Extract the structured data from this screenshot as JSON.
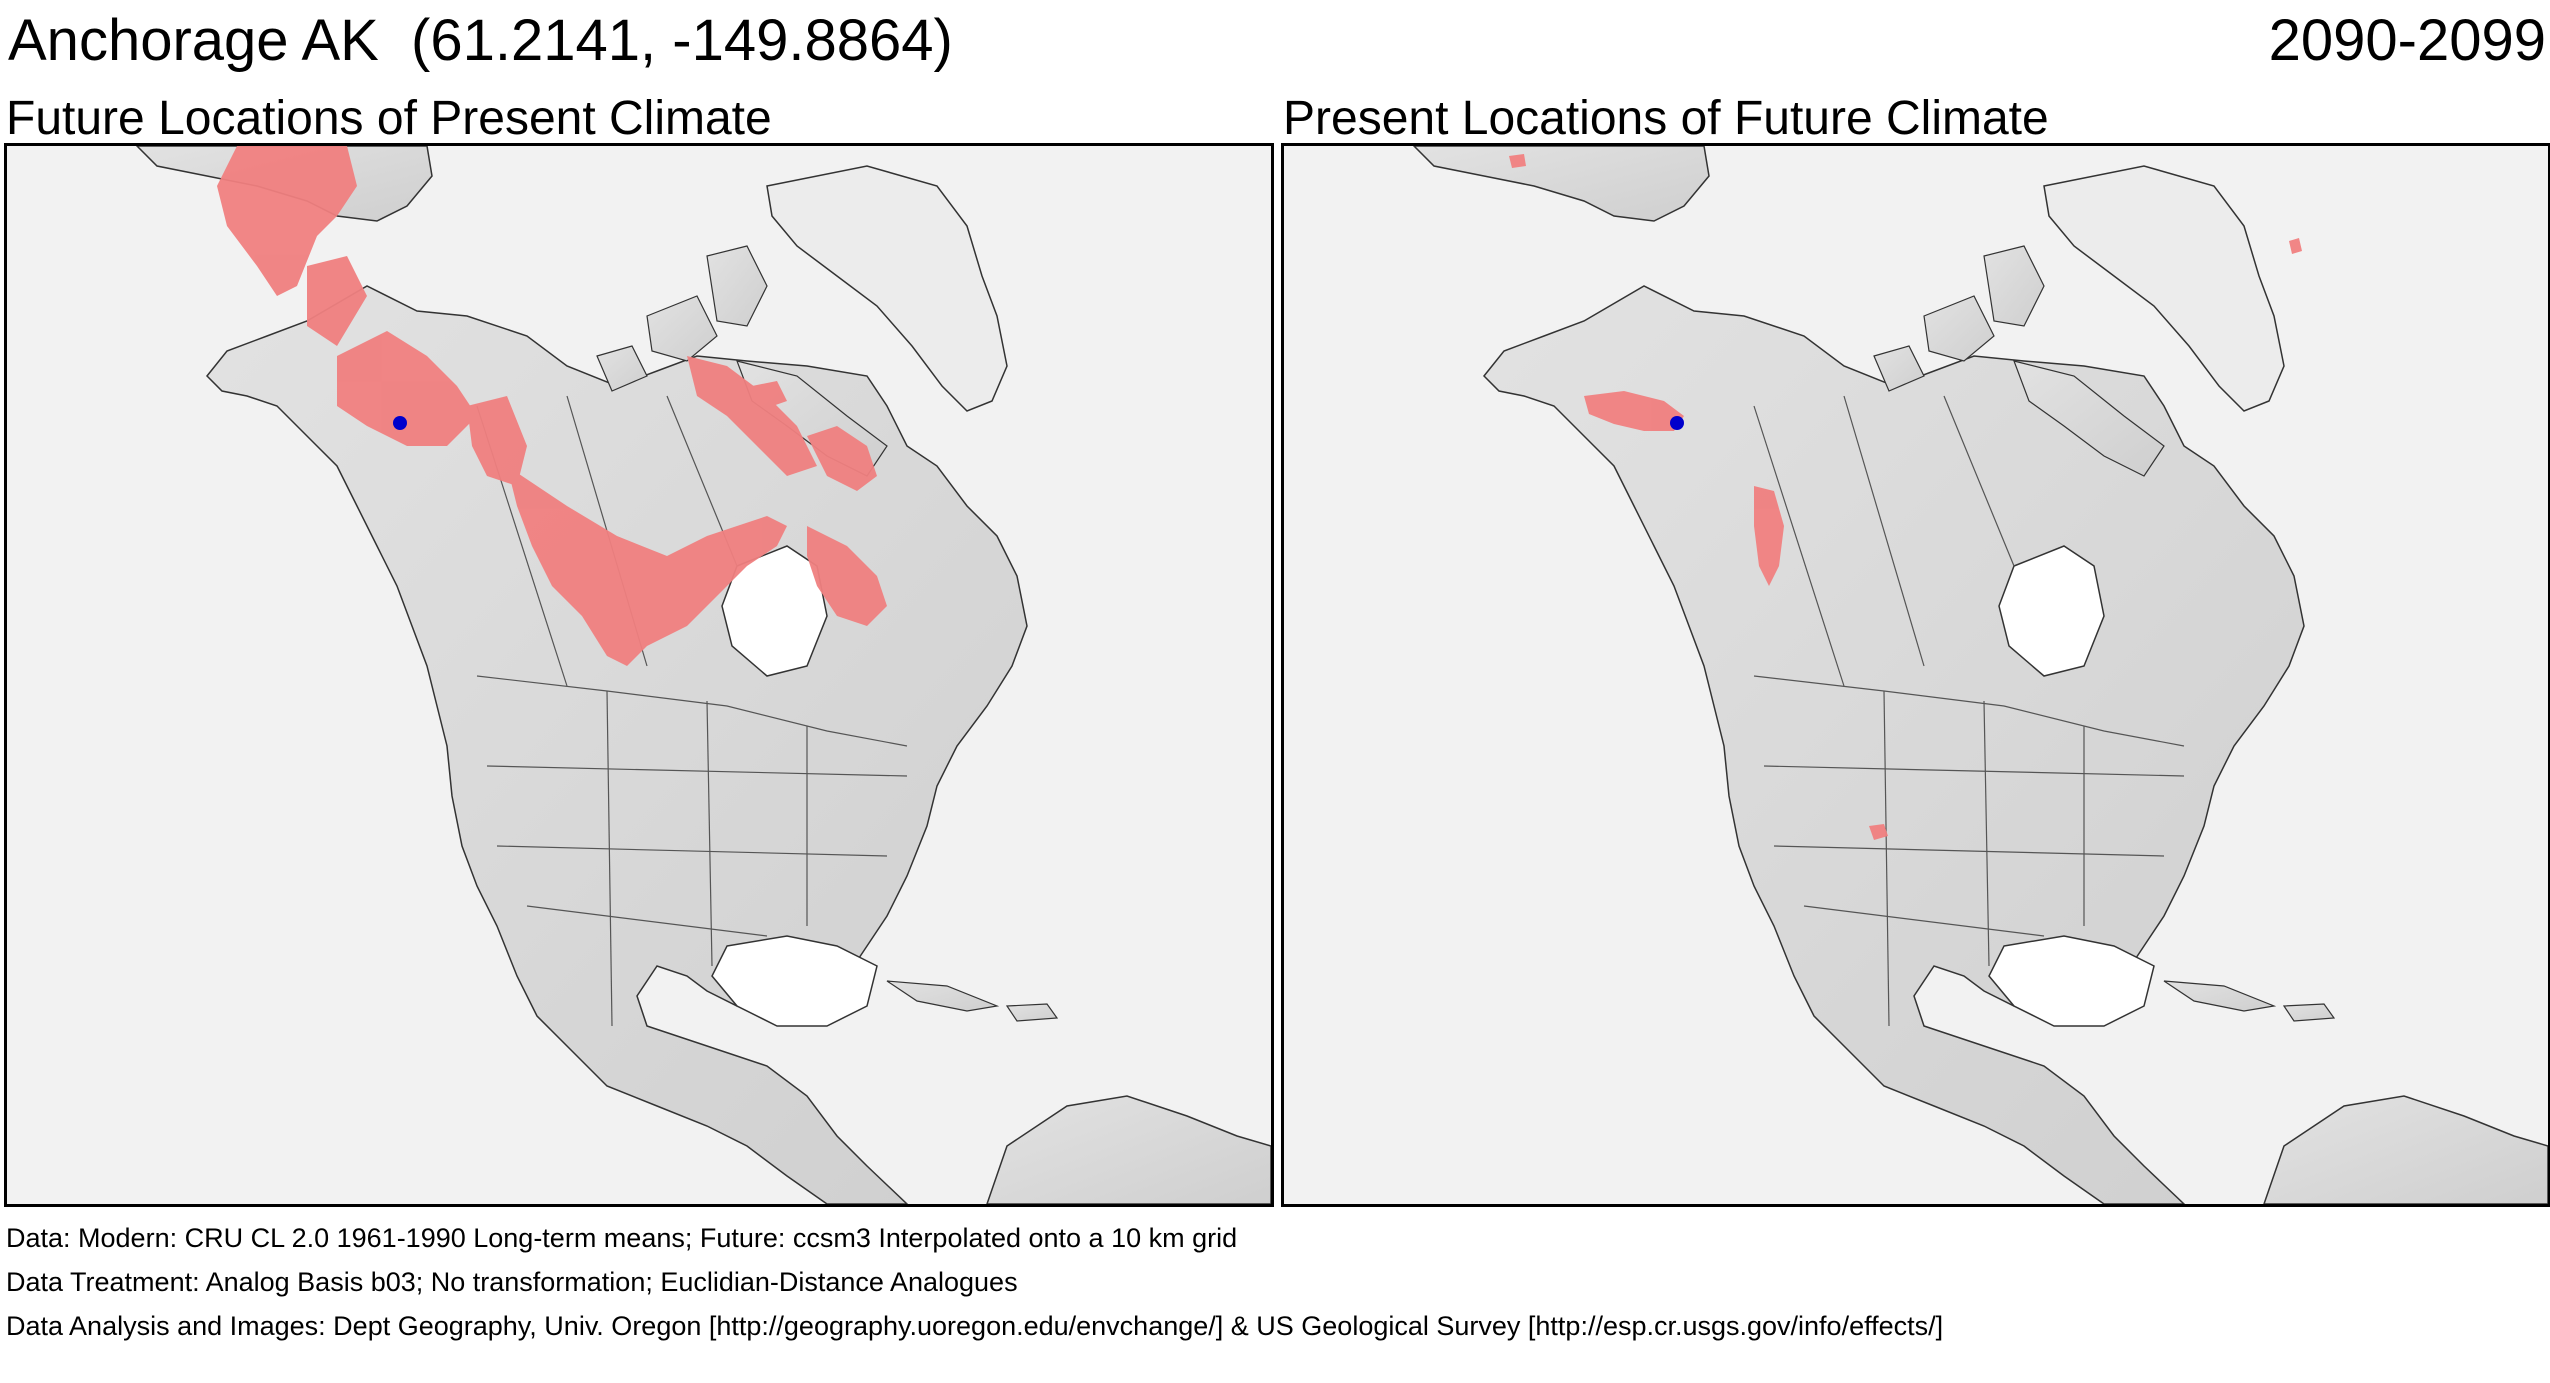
{
  "header": {
    "location_title": "Anchorage AK  (61.2141, -149.8864)",
    "period": "2090-2099"
  },
  "panels": [
    {
      "title": "Future Locations of Present Climate"
    },
    {
      "title": "Present Locations of Future Climate"
    }
  ],
  "colors": {
    "ocean": "#f2f2f2",
    "land": "#d9d9d9",
    "land_shade": "#b8b8b8",
    "analog": "#f08080",
    "marker": "#0000cc",
    "border": "#555555"
  },
  "marker_icon": "location-dot-icon",
  "footer": {
    "line1": "Data:  Modern: CRU CL 2.0 1961-1990 Long-term means; Future: ccsm3 Interpolated onto a 10 km grid",
    "line2": "Data Treatment:  Analog Basis b03; No transformation; Euclidian-Distance Analogues",
    "line3": "Data Analysis and Images:  Dept Geography, Univ. Oregon [http://geography.uoregon.edu/envchange/] & US Geological Survey [http://esp.cr.usgs.gov/info/effects/]"
  }
}
